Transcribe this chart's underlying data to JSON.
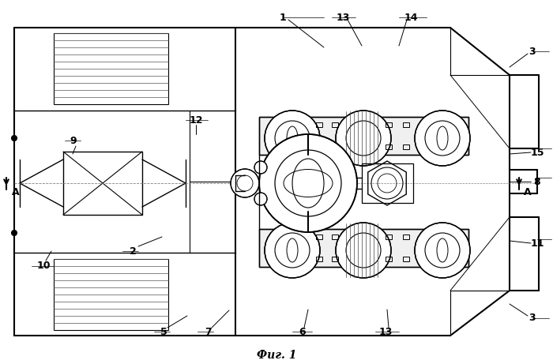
{
  "title": "Фиг. 1",
  "bg_color": "#ffffff",
  "figsize": [
    7.0,
    4.61
  ],
  "dpi": 100,
  "xlim": [
    0,
    700
  ],
  "ylim": [
    0,
    461
  ]
}
